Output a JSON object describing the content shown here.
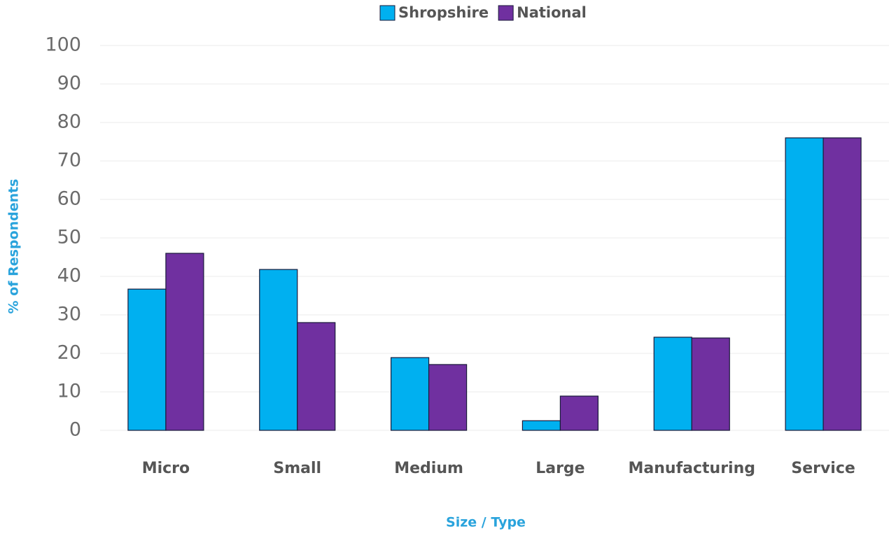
{
  "chart_data": {
    "type": "bar",
    "categories": [
      "Micro",
      "Small",
      "Medium",
      "Large",
      "Manufacturing",
      "Service"
    ],
    "series": [
      {
        "name": "Shropshire",
        "color": "#00b0f0",
        "values": [
          36.7,
          41.8,
          18.9,
          2.5,
          24.2,
          76
        ]
      },
      {
        "name": "National",
        "color": "#7030a0",
        "values": [
          46,
          28,
          17.1,
          8.9,
          24,
          76
        ]
      }
    ],
    "xlabel": "Size / Type",
    "ylabel": "% of Respondents",
    "ylim": [
      0,
      100
    ],
    "yticks": [
      0,
      10,
      20,
      30,
      40,
      50,
      60,
      70,
      80,
      90,
      100
    ],
    "grid": true,
    "legend": "top"
  }
}
